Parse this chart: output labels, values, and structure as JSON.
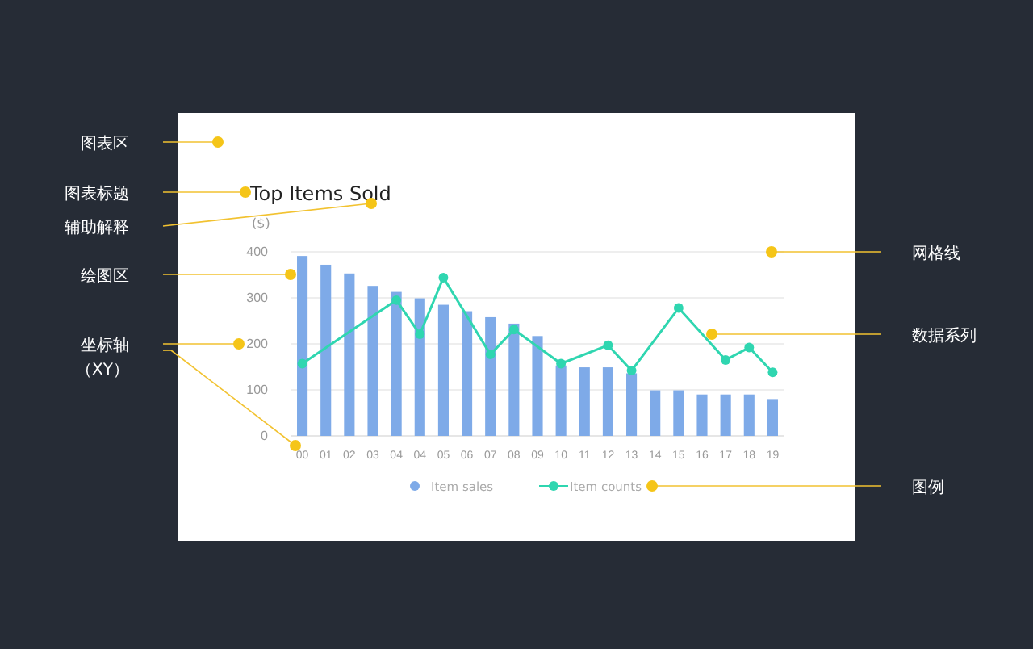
{
  "chart_data": {
    "type": "bar",
    "title": "Top Items Sold",
    "ylabel": "($)",
    "categories": [
      "00",
      "01",
      "02",
      "03",
      "04",
      "04",
      "05",
      "06",
      "07",
      "08",
      "09",
      "10",
      "11",
      "12",
      "13",
      "14",
      "15",
      "16",
      "17",
      "18",
      "19"
    ],
    "series": [
      {
        "name": "Item sales",
        "color": "#7eaae8",
        "values": [
          391,
          372,
          353,
          326,
          313,
          299,
          285,
          271,
          258,
          244,
          217,
          153,
          149,
          149,
          136,
          99,
          99,
          90,
          90,
          90,
          80
        ]
      },
      {
        "name": "Item counts",
        "type": "line",
        "color": "#2fd6b0",
        "values": [
          157,
          null,
          null,
          null,
          295,
          221,
          344,
          null,
          177,
          231,
          null,
          157,
          null,
          197,
          142,
          null,
          278,
          null,
          165,
          192,
          138
        ]
      }
    ],
    "ylim": [
      0,
      400
    ],
    "yticks": [
      0,
      100,
      200,
      300,
      400
    ],
    "grid": "y",
    "legend": "bottom",
    "marker": "circle",
    "annotations": [
      "图表区",
      "图表标题",
      "辅助解释",
      "绘图区",
      "坐标轴",
      "（XY）",
      "网格线",
      "数据系列",
      "图例"
    ]
  }
}
